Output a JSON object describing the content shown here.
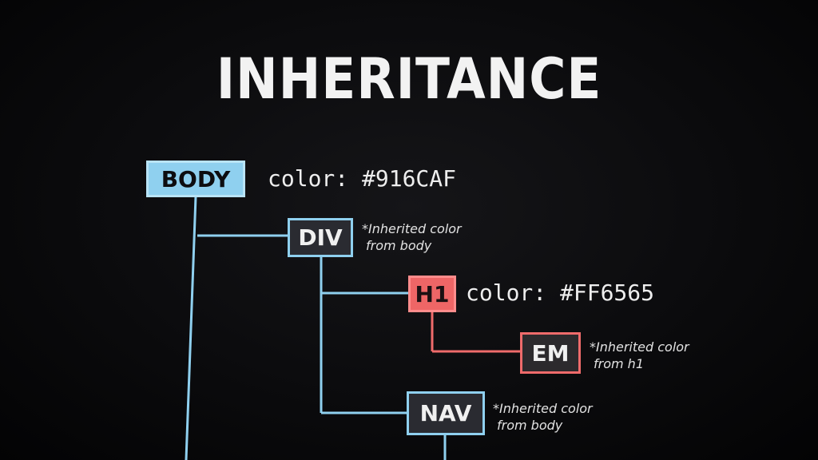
{
  "title": "INHERITANCE",
  "nodes": {
    "body": {
      "label": "BODY",
      "style": "#916CAF"
    },
    "div": {
      "label": "DIV"
    },
    "h1": {
      "label": "H1",
      "style": "#FF6565"
    },
    "em": {
      "label": "EM"
    },
    "nav": {
      "label": "NAV"
    }
  },
  "rules": {
    "body": "color: #916CAF",
    "h1": "color: #FF6565"
  },
  "notes": {
    "div": {
      "line1": "*Inherited color",
      "line2": "from body"
    },
    "em": {
      "line1": "*Inherited color",
      "line2": "from h1"
    },
    "nav": {
      "line1": "*Inherited color",
      "line2": "from body"
    }
  },
  "colors": {
    "background": "#0a0a0c",
    "blue_accent": "#8fd0ef",
    "red_accent": "#ef6b6b",
    "text": "#eeeeee"
  }
}
